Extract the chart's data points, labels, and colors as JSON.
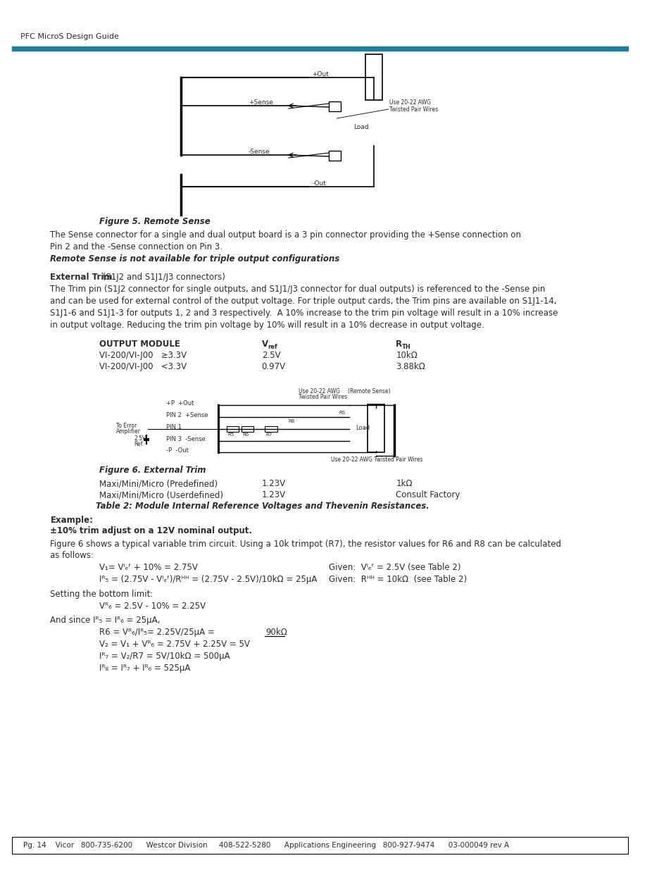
{
  "header_text": "PFC MicroS Design Guide",
  "header_bar_color": "#1a7fa0",
  "footer_text": "Pg. 14    Vicor   800-735-6200      Westcor Division     408-522-5280      Applications Engineering   800-927-9474      03-000049 rev A",
  "body_color": "#2c2c2c",
  "bg_color": "#ffffff",
  "fig5_caption": "Figure 5. Remote Sense",
  "fig5_text1": "The Sense connector for a single and dual output board is a 3 pin connector providing the +Sense connection on",
  "fig5_text2": "Pin 2 and the -Sense connection on Pin 3.",
  "fig5_text3": "Remote Sense is not available for triple output configurations",
  "ext_trim_heading": "External Trim",
  "ext_trim_heading2": " (S1J2 and S1J1/J3 connectors)",
  "ext_trim_body1": "The Trim pin (S1J2 connector for single outputs, and S1J1/J3 connector for dual outputs) is referenced to the -Sense pin",
  "ext_trim_body2": "and can be used for external control of the output voltage. For triple output cards, the Trim pins are available on S1J1-14,",
  "ext_trim_body3": "S1J1-6 and S1J1-3 for outputs 1, 2 and 3 respectively.  A 10% increase to the trim pin voltage will result in a 10% increase",
  "ext_trim_body4": "in output voltage. Reducing the trim pin voltage by 10% will result in a 10% decrease in output voltage.",
  "table_heading1": "OUTPUT MODULE",
  "table_row1_col1": "VI-200/VI-J00   ≥3.3V",
  "table_row1_col2": "2.5V",
  "table_row1_col3": "10kΩ",
  "table_row2_col1": "VI-200/VI-J00   <3.3V",
  "table_row2_col2": "0.97V",
  "table_row2_col3": "3.88kΩ",
  "fig6_caption": "Figure 6. External Trim",
  "table2_row1_col1": "Maxi/Mini/Micro (Predefined)",
  "table2_row1_col2": "1.23V",
  "table2_row1_col3": "1kΩ",
  "table2_row2_col1": "Maxi/Mini/Micro (Userdefined)",
  "table2_row2_col2": "1.23V",
  "table2_row2_col3": "Consult Factory",
  "table2_caption": "Table 2: Module Internal Reference Voltages and Thevenin Resistances.",
  "example_heading": "Example:",
  "example_subheading": "±10% trim adjust on a 12V nominal output.",
  "para1": "Figure 6 shows a typical variable trim circuit. Using a 10k trimpot (R7), the resistor values for R6 and R8 can be calculated",
  "para2": "as follows:",
  "setting_text": "Setting the bottom limit:",
  "and_since": "And since Iᴿ₅ = Iᴿ₆ = 25μA,"
}
